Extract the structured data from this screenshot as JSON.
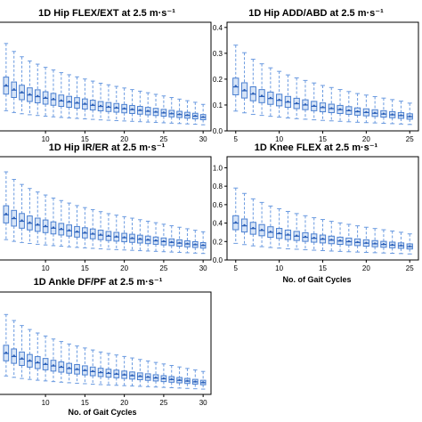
{
  "colors": {
    "box_fill": "#d6e4f7",
    "box_edge": "#4a7fd0",
    "whisker": "#6a9ae0",
    "median": "#2a5fb8"
  },
  "chart_data": [
    {
      "type": "box",
      "title": "1D Hip FLEX/EXT at 2.5 m·s⁻¹",
      "xlabel": "",
      "xticks": [
        "10",
        "15",
        "20",
        "25",
        "30"
      ],
      "yticks": [],
      "xlim": [
        4,
        31
      ],
      "ylim": [
        0,
        0.4
      ],
      "x": [
        5,
        6,
        7,
        8,
        9,
        10,
        11,
        12,
        13,
        14,
        15,
        16,
        17,
        18,
        19,
        20,
        21,
        22,
        23,
        24,
        25,
        26,
        27,
        28,
        29,
        30
      ],
      "medians": [
        0.165,
        0.15,
        0.14,
        0.132,
        0.126,
        0.12,
        0.115,
        0.11,
        0.106,
        0.102,
        0.098,
        0.094,
        0.09,
        0.087,
        0.084,
        0.081,
        0.078,
        0.075,
        0.072,
        0.069,
        0.066,
        0.063,
        0.06,
        0.057,
        0.054,
        0.05
      ]
    },
    {
      "type": "box",
      "title": "1D Hip ADD/ABD at 2.5 m·s⁻¹",
      "xlabel": "",
      "xticks": [
        "5",
        "10",
        "15",
        "20",
        "25"
      ],
      "yticks": [
        "0.0",
        "0.1",
        "0.2",
        "0.3",
        "0.4"
      ],
      "xlim": [
        4,
        26
      ],
      "ylim": [
        0,
        0.42
      ],
      "x": [
        5,
        6,
        7,
        8,
        9,
        10,
        11,
        12,
        13,
        14,
        15,
        16,
        17,
        18,
        19,
        20,
        21,
        22,
        23,
        24,
        25
      ],
      "medians": [
        0.17,
        0.155,
        0.142,
        0.133,
        0.125,
        0.118,
        0.111,
        0.105,
        0.1,
        0.095,
        0.09,
        0.086,
        0.082,
        0.078,
        0.074,
        0.071,
        0.068,
        0.065,
        0.062,
        0.059,
        0.055
      ]
    },
    {
      "type": "box",
      "title": "1D Hip IR/ER at 2.5 m·s⁻¹",
      "xlabel": "",
      "xticks": [
        "10",
        "15",
        "20",
        "25",
        "30"
      ],
      "yticks": [],
      "xlim": [
        4,
        31
      ],
      "ylim": [
        0,
        0.4
      ],
      "x": [
        5,
        6,
        7,
        8,
        9,
        10,
        11,
        12,
        13,
        14,
        15,
        16,
        17,
        18,
        19,
        20,
        21,
        22,
        23,
        24,
        25,
        26,
        27,
        28,
        29,
        30
      ],
      "medians": [
        0.175,
        0.16,
        0.15,
        0.142,
        0.135,
        0.129,
        0.123,
        0.118,
        0.113,
        0.108,
        0.104,
        0.1,
        0.096,
        0.092,
        0.089,
        0.086,
        0.083,
        0.08,
        0.077,
        0.074,
        0.071,
        0.068,
        0.065,
        0.062,
        0.059,
        0.056
      ]
    },
    {
      "type": "box",
      "title": "1D Knee FLEX at 2.5 m·s⁻¹",
      "xlabel": "No. of Gait Cycles",
      "xticks": [
        "5",
        "10",
        "15",
        "20",
        "25"
      ],
      "yticks": [
        "0.0",
        "0.2",
        "0.4",
        "0.6",
        "0.8",
        "1.0"
      ],
      "xlim": [
        4,
        26
      ],
      "ylim": [
        0,
        1.12
      ],
      "x": [
        5,
        6,
        7,
        8,
        9,
        10,
        11,
        12,
        13,
        14,
        15,
        16,
        17,
        18,
        19,
        20,
        21,
        22,
        23,
        24,
        25
      ],
      "medians": [
        0.4,
        0.37,
        0.34,
        0.32,
        0.3,
        0.285,
        0.27,
        0.258,
        0.246,
        0.235,
        0.225,
        0.215,
        0.206,
        0.198,
        0.19,
        0.182,
        0.175,
        0.168,
        0.161,
        0.154,
        0.145
      ]
    },
    {
      "type": "box",
      "title": "1D Ankle DF/PF at 2.5 m·s⁻¹",
      "xlabel": "No. of Gait Cycles",
      "xticks": [
        "10",
        "15",
        "20",
        "25",
        "30"
      ],
      "yticks": [],
      "xlim": [
        4,
        31
      ],
      "ylim": [
        0,
        0.4
      ],
      "x": [
        5,
        6,
        7,
        8,
        9,
        10,
        11,
        12,
        13,
        14,
        15,
        16,
        17,
        18,
        19,
        20,
        21,
        22,
        23,
        24,
        25,
        26,
        27,
        28,
        29,
        30
      ],
      "medians": [
        0.16,
        0.148,
        0.138,
        0.13,
        0.123,
        0.117,
        0.111,
        0.106,
        0.101,
        0.097,
        0.093,
        0.089,
        0.085,
        0.082,
        0.079,
        0.076,
        0.073,
        0.07,
        0.067,
        0.064,
        0.061,
        0.058,
        0.055,
        0.052,
        0.049,
        0.046
      ]
    }
  ]
}
